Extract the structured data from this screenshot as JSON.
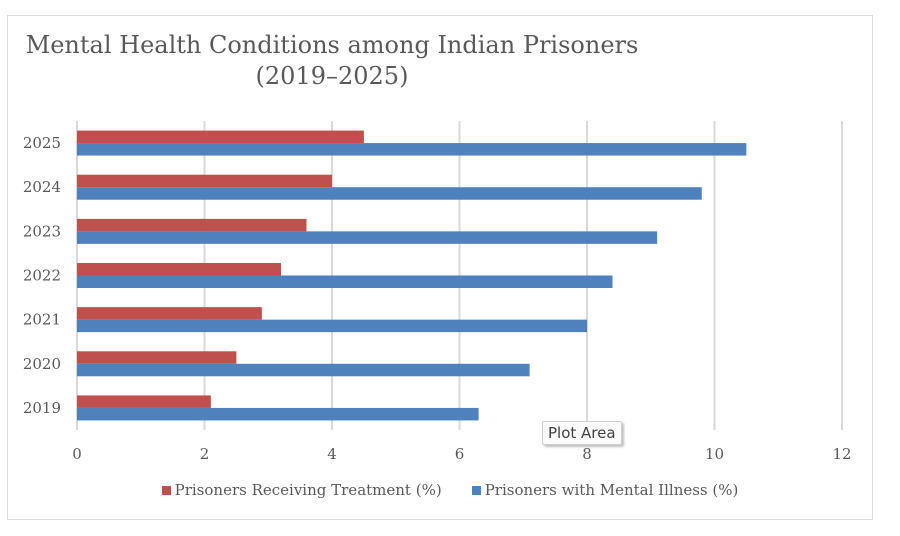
{
  "tooltip": {
    "text": "Plot Area"
  },
  "colors": {
    "treatment": "#c0504d",
    "illness": "#4f81bd",
    "grid": "#d9d9d9",
    "text": "#595959"
  },
  "chart_data": {
    "type": "bar",
    "orientation": "horizontal",
    "title": "Mental Health Conditions among Indian Prisoners (2019–2025)",
    "title_lines": [
      "Mental Health Conditions among Indian Prisoners",
      "(2019–2025)"
    ],
    "categories": [
      "2019",
      "2020",
      "2021",
      "2022",
      "2023",
      "2024",
      "2025"
    ],
    "series": [
      {
        "name": "Prisoners Receiving Treatment (%)",
        "color": "#c0504d",
        "values": [
          2.1,
          2.5,
          2.9,
          3.2,
          3.6,
          4.0,
          4.5
        ]
      },
      {
        "name": "Prisoners with Mental Illness (%)",
        "color": "#4f81bd",
        "values": [
          6.3,
          7.1,
          8.0,
          8.4,
          9.1,
          9.8,
          10.5
        ]
      }
    ],
    "xlabel": "",
    "ylabel": "",
    "xlim": [
      0,
      12
    ],
    "xticks": [
      0,
      2,
      4,
      6,
      8,
      10,
      12
    ],
    "grid": "vertical",
    "legend": "bottom"
  }
}
